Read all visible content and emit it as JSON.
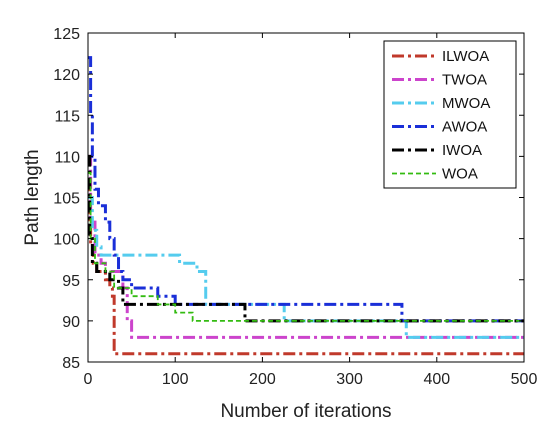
{
  "chart_data": {
    "type": "line",
    "title": "",
    "xlabel": "Number of iterations",
    "ylabel": "Path length",
    "xlim": [
      0,
      500
    ],
    "ylim": [
      85,
      125
    ],
    "xticks": [
      0,
      100,
      200,
      300,
      400,
      500
    ],
    "yticks": [
      85,
      90,
      95,
      100,
      105,
      110,
      115,
      120,
      125
    ],
    "grid": false,
    "legend_position": "top-right",
    "series": [
      {
        "name": "ILWOA",
        "color": "#c0392b",
        "style": "dashdot",
        "x": [
          0,
          2,
          3,
          6,
          10,
          20,
          25,
          28,
          30,
          500
        ],
        "y": [
          107,
          102,
          99,
          97,
          96,
          95,
          94,
          93,
          86,
          86
        ]
      },
      {
        "name": "TWOA",
        "color": "#cc44cc",
        "style": "dashdot",
        "x": [
          0,
          3,
          8,
          15,
          20,
          40,
          45,
          50,
          500
        ],
        "y": [
          110,
          102,
          98,
          97,
          96,
          94,
          90,
          88,
          88
        ]
      },
      {
        "name": "MWOA",
        "color": "#55ccee",
        "style": "dashdot",
        "x": [
          0,
          5,
          10,
          15,
          105,
          125,
          135,
          225,
          365,
          500
        ],
        "y": [
          105,
          101,
          99,
          98,
          97,
          96,
          92,
          90,
          88,
          88
        ]
      },
      {
        "name": "AWOA",
        "color": "#1a2fd8",
        "style": "dashdot",
        "x": [
          0,
          3,
          5,
          8,
          12,
          20,
          25,
          30,
          35,
          40,
          50,
          80,
          100,
          110,
          360,
          500
        ],
        "y": [
          122,
          115,
          110,
          106,
          104,
          102,
          100,
          98,
          96,
          95,
          94,
          93,
          92,
          92,
          90,
          90
        ]
      },
      {
        "name": "IWOA",
        "color": "#000000",
        "style": "dashdot",
        "x": [
          0,
          2,
          5,
          10,
          25,
          35,
          40,
          180,
          500
        ],
        "y": [
          110,
          100,
          97,
          96,
          95,
          94,
          92,
          90,
          90
        ]
      },
      {
        "name": "WOA",
        "color": "#33bb11",
        "style": "dashed",
        "x": [
          0,
          3,
          8,
          20,
          30,
          50,
          80,
          100,
          120,
          500
        ],
        "y": [
          108,
          100,
          97,
          96,
          94,
          93,
          92,
          91,
          90,
          90
        ]
      }
    ]
  }
}
